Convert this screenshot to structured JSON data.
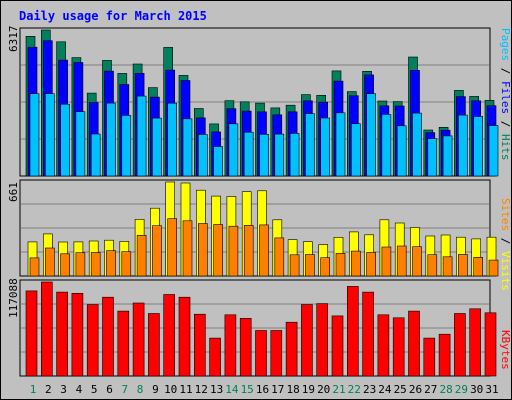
{
  "title": "Daily usage for March 2015",
  "colors": {
    "background": "#C0C0C0",
    "border": "#000000",
    "hits": "#00805C",
    "files": "#0000FF",
    "pages": "#00C0FF",
    "visits": "#FFFF00",
    "sites": "#FF8000",
    "kbytes": "#FF0000",
    "title_text": "#0000FF",
    "weekday_label": "#000000",
    "weekend_label": "#00805C"
  },
  "legend": {
    "top": [
      {
        "text": "Pages",
        "color": "#00C0FF"
      },
      {
        "text": " / ",
        "color": "#000000"
      },
      {
        "text": "Files",
        "color": "#0000FF"
      },
      {
        "text": " / ",
        "color": "#000000"
      },
      {
        "text": "Hits",
        "color": "#00805C"
      }
    ],
    "middle": [
      {
        "text": "Sites",
        "color": "#FF8000"
      },
      {
        "text": " / ",
        "color": "#000000"
      },
      {
        "text": "Visits",
        "color": "#FFFF00"
      }
    ],
    "bottom": [
      {
        "text": "KBytes",
        "color": "#FF0000"
      }
    ]
  },
  "chart_data": [
    {
      "type": "bar",
      "title": "Daily usage for March 2015",
      "max_label": "6317",
      "ylim": [
        0,
        6317
      ],
      "categories": [
        "1",
        "2",
        "3",
        "4",
        "5",
        "6",
        "7",
        "8",
        "9",
        "10",
        "11",
        "12",
        "13",
        "14",
        "15",
        "16",
        "17",
        "18",
        "19",
        "20",
        "21",
        "22",
        "23",
        "24",
        "25",
        "26",
        "27",
        "28",
        "29",
        "30",
        "31"
      ],
      "weekend_days": [
        "1",
        "7",
        "8",
        "14",
        "15",
        "21",
        "22",
        "28",
        "29"
      ],
      "series": [
        {
          "name": "Hits",
          "values": [
            6044,
            6317,
            5805,
            5124,
            3586,
            5003,
            4439,
            4848,
            3825,
            5566,
            4353,
            2919,
            2254,
            3256,
            3210,
            3154,
            2945,
            3062,
            3523,
            3491,
            4548,
            3653,
            4531,
            3244,
            3221,
            5150,
            1992,
            2108,
            3702,
            3442,
            3269
          ]
        },
        {
          "name": "Files",
          "values": [
            5571,
            5856,
            5014,
            4911,
            3181,
            4540,
            3960,
            4442,
            3414,
            4584,
            4131,
            2514,
            1906,
            2912,
            2808,
            2777,
            2647,
            2777,
            3253,
            3197,
            4104,
            3475,
            4373,
            3038,
            3030,
            4574,
            1877,
            1980,
            3434,
            3252,
            3040
          ]
        },
        {
          "name": "Pages",
          "values": [
            3562,
            3562,
            3108,
            2784,
            1818,
            3153,
            2622,
            3456,
            2504,
            3152,
            2476,
            1794,
            1277,
            2260,
            1893,
            1806,
            1812,
            1845,
            2700,
            2508,
            2734,
            2261,
            3562,
            2664,
            2170,
            2720,
            1617,
            1737,
            2637,
            2574,
            2181
          ]
        }
      ]
    },
    {
      "type": "bar",
      "max_label": "661",
      "ylim": [
        0,
        661
      ],
      "categories": [
        "1",
        "2",
        "3",
        "4",
        "5",
        "6",
        "7",
        "8",
        "9",
        "10",
        "11",
        "12",
        "13",
        "14",
        "15",
        "16",
        "17",
        "18",
        "19",
        "20",
        "21",
        "22",
        "23",
        "24",
        "25",
        "26",
        "27",
        "28",
        "29",
        "30",
        "31"
      ],
      "series": [
        {
          "name": "Visits",
          "values": [
            240,
            296,
            239,
            240,
            246,
            252,
            243,
            399,
            477,
            661,
            654,
            603,
            562,
            559,
            593,
            599,
            395,
            255,
            241,
            221,
            272,
            310,
            290,
            395,
            373,
            341,
            281,
            288,
            273,
            261,
            273
          ]
        },
        {
          "name": "Sites",
          "values": [
            127,
            197,
            156,
            164,
            165,
            178,
            171,
            286,
            354,
            403,
            388,
            369,
            362,
            350,
            356,
            359,
            268,
            149,
            151,
            129,
            159,
            175,
            165,
            204,
            211,
            206,
            150,
            135,
            152,
            131,
            112
          ]
        }
      ]
    },
    {
      "type": "bar",
      "max_label": "117088",
      "ylim": [
        0,
        117088
      ],
      "categories": [
        "1",
        "2",
        "3",
        "4",
        "5",
        "6",
        "7",
        "8",
        "9",
        "10",
        "11",
        "12",
        "13",
        "14",
        "15",
        "16",
        "17",
        "18",
        "19",
        "20",
        "21",
        "22",
        "23",
        "24",
        "25",
        "26",
        "27",
        "28",
        "29",
        "30",
        "31"
      ],
      "series": [
        {
          "name": "KBytes",
          "values": [
            106017,
            117088,
            104513,
            102995,
            88969,
            98127,
            80785,
            90931,
            77792,
            101487,
            98100,
            77004,
            47223,
            76290,
            71926,
            56683,
            56673,
            67018,
            88969,
            90172,
            74880,
            111563,
            104500,
            76290,
            72440,
            80785,
            47223,
            52032,
            77792,
            83734,
            78765
          ]
        }
      ]
    }
  ]
}
